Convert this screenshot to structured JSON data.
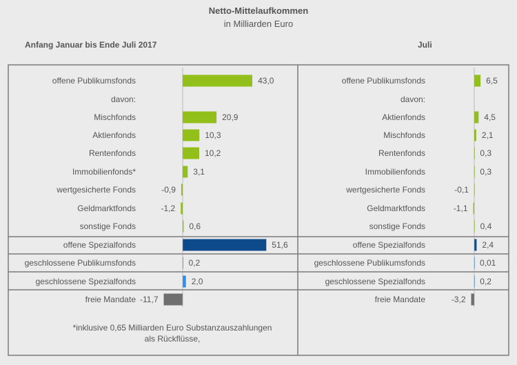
{
  "title": "Netto-Mittelaufkommen",
  "subtitle": "in Milliarden Euro",
  "colors": {
    "green": "#93bf1a",
    "navy": "#0d4a8c",
    "blue": "#2d8fe6",
    "gray": "#6f6f6f",
    "frame": "#7a7a7a"
  },
  "chart_data": [
    {
      "type": "bar",
      "title": "Anfang Januar bis Ende Juli 2017",
      "unit": "Milliarden Euro",
      "categories": [
        "offene Publikumsfonds",
        "davon:",
        "Mischfonds",
        "Aktienfonds",
        "Rentenfonds",
        "Immobilienfonds*",
        "wertgesicherte Fonds",
        "Geldmarktfonds",
        "sonstige Fonds",
        "offene Spezialfonds",
        "geschlossene Publikumsfonds",
        "geschlossene Spezialfonds",
        "freie Mandate"
      ],
      "values": [
        43.0,
        null,
        20.9,
        10.3,
        10.2,
        3.1,
        -0.9,
        -1.2,
        0.6,
        51.6,
        0.2,
        2.0,
        -11.7
      ],
      "labels": [
        "43,0",
        "",
        "20,9",
        "10,3",
        "10,2",
        "3,1",
        "-0,9",
        "-1,2",
        "0,6",
        "51,6",
        "0,2",
        "2,0",
        "-11,7"
      ],
      "colors": [
        "green",
        "",
        "green",
        "green",
        "green",
        "green",
        "green",
        "green",
        "green",
        "navy",
        "blue",
        "blue",
        "gray"
      ],
      "footnote": "*inklusive 0,65 Milliarden  Euro Substanzauszahlungen als Rückflüsse,"
    },
    {
      "type": "bar",
      "title": "Juli",
      "unit": "Milliarden Euro",
      "categories": [
        "offene Publikumsfonds",
        "davon:",
        "Aktienfonds",
        "Mischfonds",
        "Rentenfonds",
        "Immobilienfonds",
        "wertgesicherte Fonds",
        "Geldmarktfonds",
        "sonstige Fonds",
        "offene Spezialfonds",
        "geschlossene Publikumsfonds",
        "geschlossene Spezialfonds",
        "freie Mandate"
      ],
      "values": [
        6.5,
        null,
        4.5,
        2.1,
        0.3,
        0.3,
        -0.1,
        -1.1,
        0.4,
        2.4,
        0.01,
        0.2,
        -3.2
      ],
      "labels": [
        "6,5",
        "",
        "4,5",
        "2,1",
        "0,3",
        "0,3",
        "-0,1",
        "-1,1",
        "0,4",
        "2,4",
        "0,01",
        "0,2",
        "-3,2"
      ],
      "colors": [
        "green",
        "",
        "green",
        "green",
        "green",
        "green",
        "green",
        "green",
        "green",
        "navy",
        "blue",
        "blue",
        "gray"
      ]
    }
  ]
}
